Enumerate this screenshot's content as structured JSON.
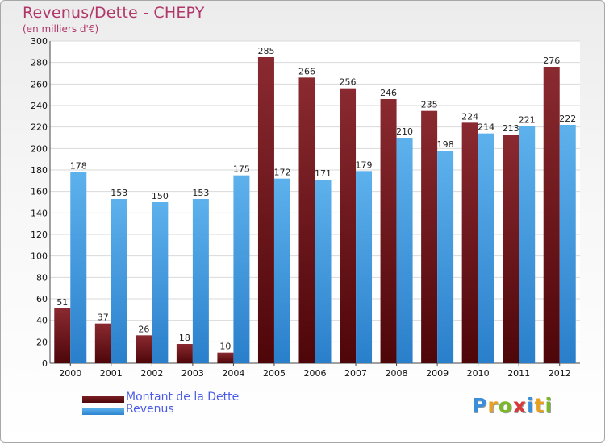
{
  "chart_data": {
    "type": "bar",
    "title": "Revenus/Dette - CHEPY",
    "subtitle": "(en milliers d'€)",
    "categories": [
      "2000",
      "2001",
      "2002",
      "2003",
      "2004",
      "2005",
      "2006",
      "2007",
      "2008",
      "2009",
      "2010",
      "2011",
      "2012"
    ],
    "series": [
      {
        "name": "Montant de la Dette",
        "color": "#6e0e14",
        "values": [
          51,
          37,
          26,
          18,
          10,
          285,
          266,
          256,
          246,
          235,
          224,
          213,
          276
        ]
      },
      {
        "name": "Revenus",
        "color": "#3c9be0",
        "values": [
          178,
          153,
          150,
          153,
          175,
          172,
          171,
          179,
          210,
          198,
          214,
          221,
          222
        ]
      }
    ],
    "ylim": [
      0,
      300
    ],
    "yticks": [
      "0",
      "20",
      "40",
      "60",
      "80",
      "100",
      "120",
      "140",
      "160",
      "180",
      "200",
      "220",
      "240",
      "260",
      "280",
      "300"
    ],
    "grid": true,
    "legend_position": "bottom-left",
    "xlabel": "",
    "ylabel": ""
  },
  "logo": {
    "letters": [
      "P",
      "r",
      "o",
      "x",
      "i",
      "t",
      "i"
    ],
    "colors": [
      "#3a8fd8",
      "#e8a020",
      "#7ab828",
      "#d83a3a",
      "#3a8fd8",
      "#e8a020",
      "#7ab828"
    ]
  }
}
